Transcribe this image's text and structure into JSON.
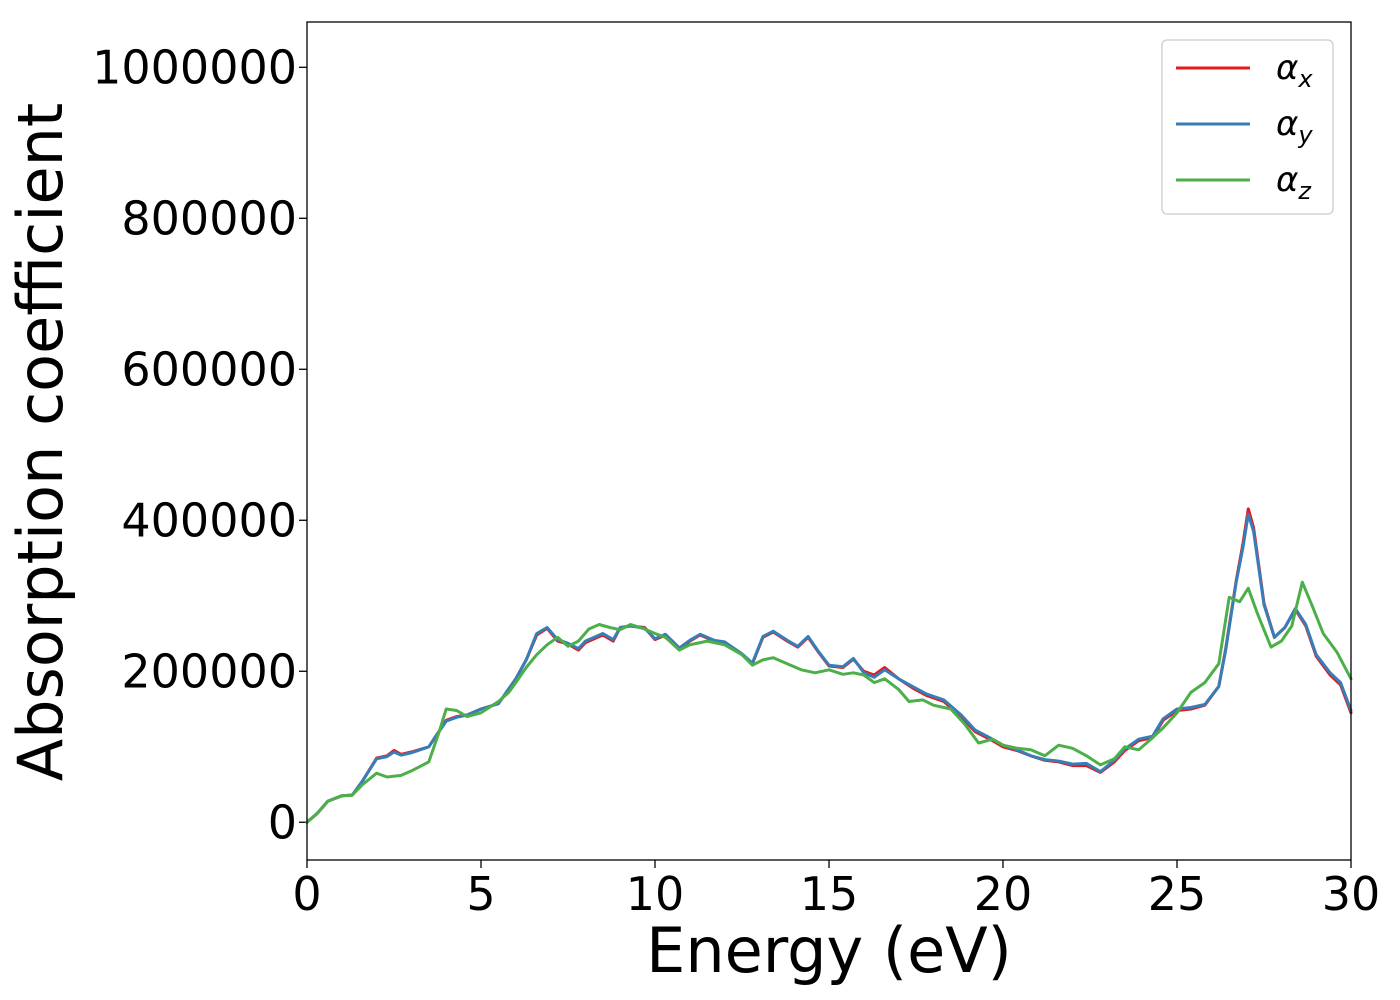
{
  "chart_data": {
    "type": "line",
    "xlabel": "Energy (eV)",
    "ylabel": "Absorption coefficient",
    "xlim": [
      0,
      30
    ],
    "ylim": [
      -50000,
      1060000
    ],
    "x_ticks": [
      0,
      5,
      10,
      15,
      20,
      25,
      30
    ],
    "y_ticks": [
      0,
      200000,
      400000,
      600000,
      800000,
      1000000
    ],
    "grid": false,
    "legend_position": "top-right",
    "series": [
      {
        "name": "αx",
        "legend_base": "α",
        "legend_sub": "x",
        "color": "#e41a1c",
        "points": [
          [
            0,
            0
          ],
          [
            0.3,
            12000
          ],
          [
            0.6,
            28000
          ],
          [
            1,
            35000
          ],
          [
            1.3,
            36000
          ],
          [
            1.6,
            55000
          ],
          [
            2,
            85000
          ],
          [
            2.3,
            88000
          ],
          [
            2.5,
            95000
          ],
          [
            2.7,
            90000
          ],
          [
            3,
            93000
          ],
          [
            3.5,
            100000
          ],
          [
            4,
            135000
          ],
          [
            4.3,
            140000
          ],
          [
            4.6,
            142000
          ],
          [
            5,
            150000
          ],
          [
            5.5,
            157000
          ],
          [
            6,
            190000
          ],
          [
            6.3,
            215000
          ],
          [
            6.6,
            248000
          ],
          [
            6.9,
            257000
          ],
          [
            7.2,
            240000
          ],
          [
            7.5,
            236000
          ],
          [
            7.8,
            228000
          ],
          [
            8,
            238000
          ],
          [
            8.5,
            248000
          ],
          [
            8.8,
            240000
          ],
          [
            9,
            258000
          ],
          [
            9.3,
            260000
          ],
          [
            9.7,
            258000
          ],
          [
            10,
            242000
          ],
          [
            10.3,
            248000
          ],
          [
            10.7,
            230000
          ],
          [
            11,
            240000
          ],
          [
            11.3,
            248000
          ],
          [
            11.7,
            240000
          ],
          [
            12,
            238000
          ],
          [
            12.5,
            222000
          ],
          [
            12.8,
            210000
          ],
          [
            13.1,
            245000
          ],
          [
            13.4,
            252000
          ],
          [
            13.8,
            240000
          ],
          [
            14.1,
            232000
          ],
          [
            14.4,
            245000
          ],
          [
            14.7,
            225000
          ],
          [
            15,
            207000
          ],
          [
            15.4,
            205000
          ],
          [
            15.7,
            216000
          ],
          [
            16,
            200000
          ],
          [
            16.3,
            195000
          ],
          [
            16.6,
            205000
          ],
          [
            17,
            190000
          ],
          [
            17.4,
            178000
          ],
          [
            17.8,
            168000
          ],
          [
            18.3,
            160000
          ],
          [
            18.8,
            140000
          ],
          [
            19.2,
            120000
          ],
          [
            19.7,
            108000
          ],
          [
            20,
            100000
          ],
          [
            20.4,
            95000
          ],
          [
            20.8,
            88000
          ],
          [
            21.2,
            82000
          ],
          [
            21.6,
            80000
          ],
          [
            22,
            75000
          ],
          [
            22.4,
            75000
          ],
          [
            22.8,
            66000
          ],
          [
            23.2,
            80000
          ],
          [
            23.5,
            95000
          ],
          [
            23.9,
            108000
          ],
          [
            24.3,
            112000
          ],
          [
            24.6,
            135000
          ],
          [
            25,
            148000
          ],
          [
            25.4,
            150000
          ],
          [
            25.8,
            155000
          ],
          [
            26.2,
            180000
          ],
          [
            26.4,
            230000
          ],
          [
            26.7,
            320000
          ],
          [
            26.9,
            370000
          ],
          [
            27.05,
            415000
          ],
          [
            27.2,
            390000
          ],
          [
            27.5,
            290000
          ],
          [
            27.8,
            245000
          ],
          [
            28.1,
            258000
          ],
          [
            28.4,
            282000
          ],
          [
            28.7,
            260000
          ],
          [
            29,
            220000
          ],
          [
            29.4,
            195000
          ],
          [
            29.7,
            182000
          ],
          [
            30,
            145000
          ]
        ]
      },
      {
        "name": "αy",
        "legend_base": "α",
        "legend_sub": "y",
        "color": "#377eb8",
        "points": [
          [
            0,
            0
          ],
          [
            0.3,
            12000
          ],
          [
            0.6,
            28000
          ],
          [
            1,
            35000
          ],
          [
            1.3,
            36000
          ],
          [
            1.6,
            55000
          ],
          [
            2,
            84000
          ],
          [
            2.3,
            87000
          ],
          [
            2.5,
            93000
          ],
          [
            2.7,
            89000
          ],
          [
            3,
            92000
          ],
          [
            3.5,
            100000
          ],
          [
            4,
            134000
          ],
          [
            4.3,
            139000
          ],
          [
            4.6,
            142000
          ],
          [
            5,
            150000
          ],
          [
            5.5,
            157000
          ],
          [
            6,
            190000
          ],
          [
            6.3,
            215000
          ],
          [
            6.6,
            250000
          ],
          [
            6.9,
            258000
          ],
          [
            7.2,
            242000
          ],
          [
            7.5,
            237000
          ],
          [
            7.8,
            230000
          ],
          [
            8,
            240000
          ],
          [
            8.5,
            250000
          ],
          [
            8.8,
            242000
          ],
          [
            9,
            258000
          ],
          [
            9.3,
            260000
          ],
          [
            9.7,
            257000
          ],
          [
            10,
            243000
          ],
          [
            10.3,
            249000
          ],
          [
            10.7,
            231000
          ],
          [
            11,
            241000
          ],
          [
            11.3,
            249000
          ],
          [
            11.7,
            241000
          ],
          [
            12,
            239000
          ],
          [
            12.5,
            223000
          ],
          [
            12.8,
            211000
          ],
          [
            13.1,
            246000
          ],
          [
            13.4,
            253000
          ],
          [
            13.8,
            241000
          ],
          [
            14.1,
            233000
          ],
          [
            14.4,
            246000
          ],
          [
            14.7,
            226000
          ],
          [
            15,
            208000
          ],
          [
            15.4,
            206000
          ],
          [
            15.7,
            217000
          ],
          [
            16,
            198000
          ],
          [
            16.3,
            192000
          ],
          [
            16.6,
            202000
          ],
          [
            17,
            190000
          ],
          [
            17.4,
            180000
          ],
          [
            17.8,
            170000
          ],
          [
            18.3,
            162000
          ],
          [
            18.8,
            142000
          ],
          [
            19.2,
            122000
          ],
          [
            19.7,
            110000
          ],
          [
            20,
            102000
          ],
          [
            20.4,
            96000
          ],
          [
            20.8,
            88000
          ],
          [
            21.2,
            83000
          ],
          [
            21.6,
            81000
          ],
          [
            22,
            77000
          ],
          [
            22.4,
            78000
          ],
          [
            22.8,
            67000
          ],
          [
            23.2,
            82000
          ],
          [
            23.5,
            97000
          ],
          [
            23.9,
            110000
          ],
          [
            24.3,
            114000
          ],
          [
            24.6,
            137000
          ],
          [
            25,
            150000
          ],
          [
            25.4,
            152000
          ],
          [
            25.8,
            156000
          ],
          [
            26.2,
            180000
          ],
          [
            26.4,
            228000
          ],
          [
            26.7,
            318000
          ],
          [
            26.9,
            365000
          ],
          [
            27.05,
            408000
          ],
          [
            27.2,
            385000
          ],
          [
            27.5,
            288000
          ],
          [
            27.8,
            245000
          ],
          [
            28.1,
            258000
          ],
          [
            28.4,
            283000
          ],
          [
            28.7,
            262000
          ],
          [
            29,
            222000
          ],
          [
            29.4,
            198000
          ],
          [
            29.7,
            185000
          ],
          [
            30,
            148000
          ]
        ]
      },
      {
        "name": "αz",
        "legend_base": "α",
        "legend_sub": "z",
        "color": "#4daf4a",
        "points": [
          [
            0,
            0
          ],
          [
            0.3,
            12000
          ],
          [
            0.6,
            28000
          ],
          [
            1,
            35000
          ],
          [
            1.3,
            36000
          ],
          [
            1.6,
            50000
          ],
          [
            2,
            65000
          ],
          [
            2.3,
            60000
          ],
          [
            2.7,
            62000
          ],
          [
            3,
            68000
          ],
          [
            3.5,
            80000
          ],
          [
            3.8,
            120000
          ],
          [
            4,
            150000
          ],
          [
            4.3,
            148000
          ],
          [
            4.6,
            140000
          ],
          [
            5,
            145000
          ],
          [
            5.5,
            160000
          ],
          [
            5.8,
            172000
          ],
          [
            6,
            185000
          ],
          [
            6.3,
            205000
          ],
          [
            6.6,
            222000
          ],
          [
            6.9,
            235000
          ],
          [
            7.2,
            245000
          ],
          [
            7.5,
            233000
          ],
          [
            7.8,
            240000
          ],
          [
            8.1,
            256000
          ],
          [
            8.4,
            262000
          ],
          [
            8.7,
            258000
          ],
          [
            9,
            255000
          ],
          [
            9.3,
            262000
          ],
          [
            9.7,
            256000
          ],
          [
            10,
            250000
          ],
          [
            10.3,
            245000
          ],
          [
            10.7,
            228000
          ],
          [
            11,
            235000
          ],
          [
            11.5,
            240000
          ],
          [
            12,
            235000
          ],
          [
            12.5,
            222000
          ],
          [
            12.8,
            208000
          ],
          [
            13.1,
            215000
          ],
          [
            13.4,
            218000
          ],
          [
            13.8,
            210000
          ],
          [
            14.2,
            202000
          ],
          [
            14.6,
            198000
          ],
          [
            15,
            202000
          ],
          [
            15.4,
            196000
          ],
          [
            15.7,
            198000
          ],
          [
            16,
            195000
          ],
          [
            16.3,
            185000
          ],
          [
            16.6,
            190000
          ],
          [
            17,
            176000
          ],
          [
            17.3,
            160000
          ],
          [
            17.7,
            162000
          ],
          [
            18,
            155000
          ],
          [
            18.5,
            150000
          ],
          [
            18.9,
            130000
          ],
          [
            19.3,
            105000
          ],
          [
            19.7,
            110000
          ],
          [
            20,
            102000
          ],
          [
            20.4,
            98000
          ],
          [
            20.8,
            96000
          ],
          [
            21.2,
            88000
          ],
          [
            21.6,
            102000
          ],
          [
            22,
            98000
          ],
          [
            22.4,
            88000
          ],
          [
            22.8,
            76000
          ],
          [
            23.2,
            84000
          ],
          [
            23.5,
            100000
          ],
          [
            23.9,
            96000
          ],
          [
            24.3,
            112000
          ],
          [
            24.6,
            125000
          ],
          [
            25,
            145000
          ],
          [
            25.4,
            172000
          ],
          [
            25.8,
            185000
          ],
          [
            26.2,
            210000
          ],
          [
            26.5,
            298000
          ],
          [
            26.8,
            292000
          ],
          [
            27.05,
            310000
          ],
          [
            27.3,
            278000
          ],
          [
            27.7,
            232000
          ],
          [
            28,
            240000
          ],
          [
            28.3,
            260000
          ],
          [
            28.6,
            318000
          ],
          [
            28.9,
            285000
          ],
          [
            29.2,
            250000
          ],
          [
            29.6,
            225000
          ],
          [
            30,
            190000
          ]
        ]
      }
    ]
  }
}
